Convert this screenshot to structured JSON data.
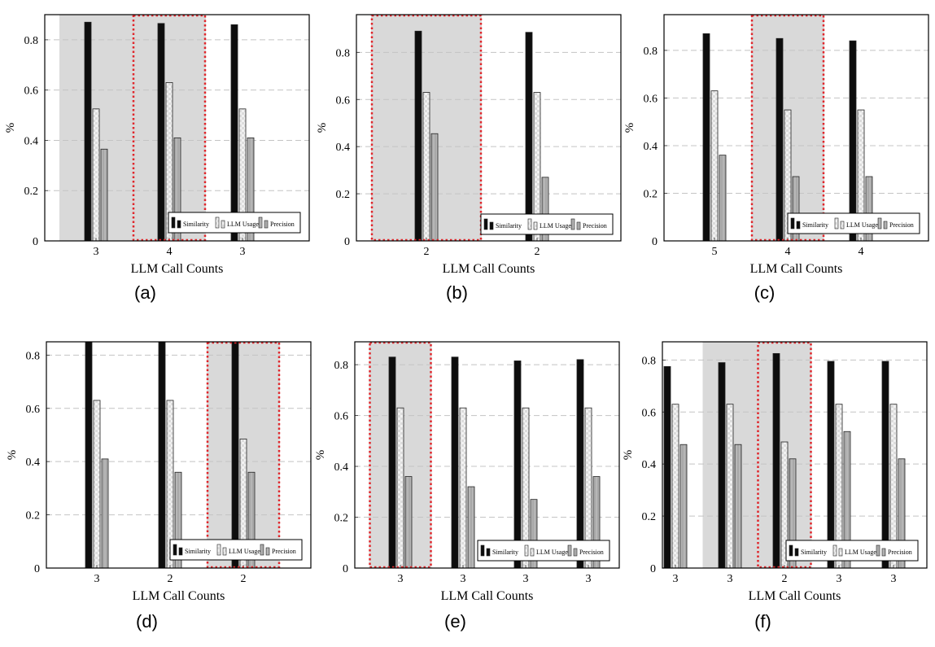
{
  "colors": {
    "similarity": "#111111",
    "llm_usage": "#dcdcdc",
    "precision": "#a8a8a8",
    "highlight_fill": "#d9d9d9",
    "selection_border": "#e0262b",
    "grid": "#c4c4c4"
  },
  "legend_labels": [
    "Similarity",
    "LLM Usage",
    "Precision"
  ],
  "chart_data": [
    {
      "type": "bar",
      "panel_label": "(a)",
      "xlabel": "LLM Call Counts",
      "ylabel": "%",
      "ylim": [
        0,
        0.9
      ],
      "yticks": [
        "0",
        "0.2",
        "0.4",
        "0.6",
        "0.8"
      ],
      "categories": [
        "3",
        "4",
        "3"
      ],
      "series": [
        {
          "name": "Similarity",
          "values": [
            0.87,
            0.865,
            0.86
          ]
        },
        {
          "name": "LLM Usage",
          "values": [
            0.525,
            0.63,
            0.525
          ]
        },
        {
          "name": "Precision",
          "values": [
            0.365,
            0.41,
            0.41
          ]
        }
      ],
      "shaded_groups": [
        0,
        1
      ],
      "selected_group": 1,
      "grid": "horizontal dashed",
      "legend": "bottom-right"
    },
    {
      "type": "bar",
      "panel_label": "(b)",
      "xlabel": "LLM Call Counts",
      "ylabel": "%",
      "ylim": [
        0,
        0.96
      ],
      "yticks": [
        "0",
        "0.2",
        "0.4",
        "0.6",
        "0.8"
      ],
      "categories": [
        "2",
        "2"
      ],
      "series": [
        {
          "name": "Similarity",
          "values": [
            0.89,
            0.885
          ]
        },
        {
          "name": "LLM Usage",
          "values": [
            0.63,
            0.63
          ]
        },
        {
          "name": "Precision",
          "values": [
            0.455,
            0.27
          ]
        }
      ],
      "shaded_groups": [
        0
      ],
      "selected_group": 0,
      "grid": "horizontal dashed",
      "legend": "bottom-right"
    },
    {
      "type": "bar",
      "panel_label": "(c)",
      "xlabel": "LLM Call Counts",
      "ylabel": "%",
      "ylim": [
        0,
        0.95
      ],
      "yticks": [
        "0",
        "0.2",
        "0.4",
        "0.6",
        "0.8"
      ],
      "categories": [
        "5",
        "4",
        "4"
      ],
      "series": [
        {
          "name": "Similarity",
          "values": [
            0.87,
            0.85,
            0.84
          ]
        },
        {
          "name": "LLM Usage",
          "values": [
            0.63,
            0.55,
            0.55
          ]
        },
        {
          "name": "Precision",
          "values": [
            0.36,
            0.27,
            0.27
          ]
        }
      ],
      "shaded_groups": [
        1
      ],
      "selected_group": 1,
      "grid": "horizontal dashed",
      "legend": "bottom-right"
    },
    {
      "type": "bar",
      "panel_label": "(d)",
      "xlabel": "LLM Call Counts",
      "ylabel": "%",
      "ylim": [
        0,
        0.85
      ],
      "yticks": [
        "0",
        "0.2",
        "0.4",
        "0.6",
        "0.8"
      ],
      "categories": [
        "3",
        "2",
        "2"
      ],
      "series": [
        {
          "name": "Similarity",
          "values": [
            0.88,
            0.88,
            0.88
          ]
        },
        {
          "name": "LLM Usage",
          "values": [
            0.63,
            0.63,
            0.485
          ]
        },
        {
          "name": "Precision",
          "values": [
            0.41,
            0.36,
            0.36
          ]
        }
      ],
      "shaded_groups": [
        2
      ],
      "selected_group": 2,
      "grid": "horizontal dashed",
      "legend": "bottom-right"
    },
    {
      "type": "bar",
      "panel_label": "(e)",
      "xlabel": "LLM Call Counts",
      "ylabel": "%",
      "ylim": [
        0,
        0.89
      ],
      "yticks": [
        "0",
        "0.2",
        "0.4",
        "0.6",
        "0.8"
      ],
      "categories": [
        "3",
        "3",
        "3",
        "3"
      ],
      "series": [
        {
          "name": "Similarity",
          "values": [
            0.83,
            0.83,
            0.815,
            0.82
          ]
        },
        {
          "name": "LLM Usage",
          "values": [
            0.63,
            0.63,
            0.63,
            0.63
          ]
        },
        {
          "name": "Precision",
          "values": [
            0.36,
            0.32,
            0.27,
            0.36
          ]
        }
      ],
      "shaded_groups": [
        0
      ],
      "selected_group": 0,
      "grid": "horizontal dashed",
      "legend": "bottom-right"
    },
    {
      "type": "bar",
      "panel_label": "(f)",
      "xlabel": "LLM Call Counts",
      "ylabel": "%",
      "ylim": [
        0,
        0.87
      ],
      "yticks": [
        "0",
        "0.2",
        "0.4",
        "0.6",
        "0.8"
      ],
      "categories": [
        "3",
        "3",
        "2",
        "3",
        "3"
      ],
      "series": [
        {
          "name": "Similarity",
          "values": [
            0.775,
            0.79,
            0.825,
            0.795,
            0.795
          ]
        },
        {
          "name": "LLM Usage",
          "values": [
            0.63,
            0.63,
            0.485,
            0.63,
            0.63
          ]
        },
        {
          "name": "Precision",
          "values": [
            0.475,
            0.475,
            0.42,
            0.525,
            0.42
          ]
        }
      ],
      "shaded_groups": [
        1,
        2
      ],
      "selected_group": 2,
      "grid": "horizontal dashed",
      "legend": "bottom-right"
    }
  ]
}
